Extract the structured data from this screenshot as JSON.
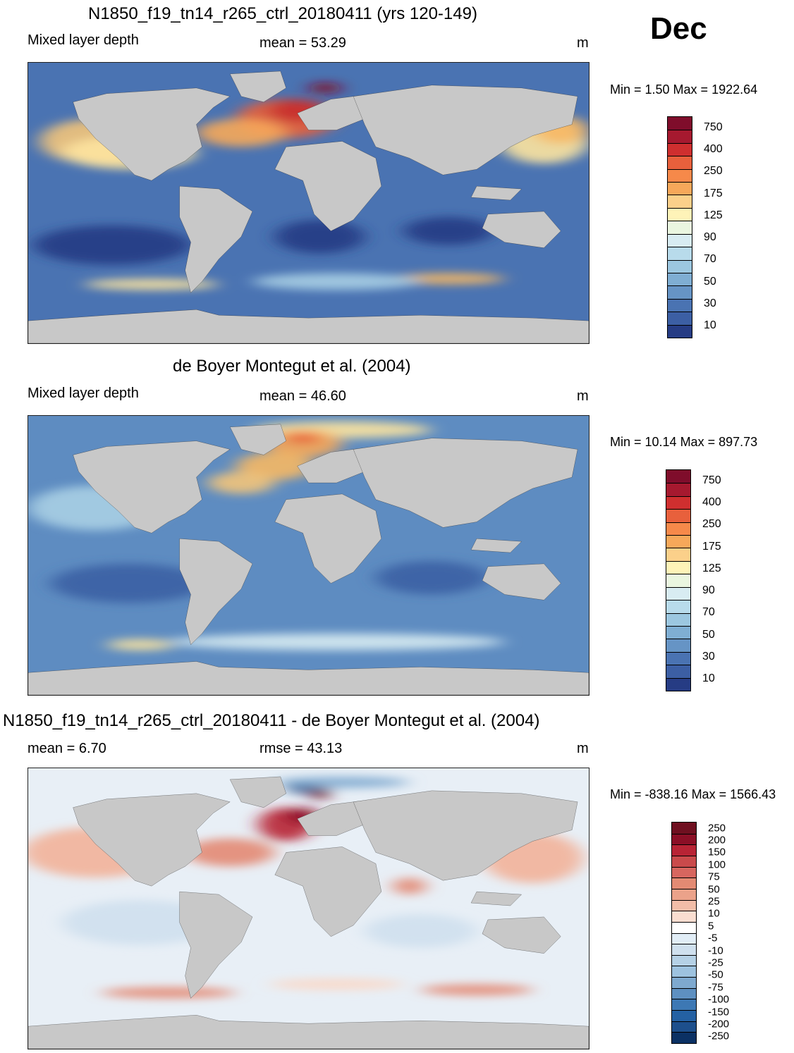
{
  "month": "Dec",
  "panels": [
    {
      "id": "model",
      "title": "N1850_f19_tn14_r265_ctrl_20180411 (yrs 120-149)",
      "left_label": "Mixed layer depth",
      "center_label": "mean =  53.29",
      "units": "m",
      "minmax": "Min =   1.50 Max = 1922.64",
      "map_bg": "#4a73b2",
      "patches": [
        {
          "c": "#f2c47a",
          "cx": 12,
          "cy": 28,
          "rx": 10,
          "ry": 8
        },
        {
          "c": "#fde4a0",
          "cx": 18,
          "cy": 32,
          "rx": 12,
          "ry": 6
        },
        {
          "c": "#e8603c",
          "cx": 46,
          "cy": 20,
          "rx": 9,
          "ry": 7
        },
        {
          "c": "#c62f2f",
          "cx": 48,
          "cy": 17,
          "rx": 5,
          "ry": 4
        },
        {
          "c": "#7f0d2b",
          "cx": 53,
          "cy": 9,
          "rx": 3,
          "ry": 2
        },
        {
          "c": "#f6a85a",
          "cx": 38,
          "cy": 25,
          "rx": 8,
          "ry": 5
        },
        {
          "c": "#fde4a0",
          "cx": 92,
          "cy": 28,
          "rx": 8,
          "ry": 8
        },
        {
          "c": "#f6b864",
          "cx": 95,
          "cy": 24,
          "rx": 5,
          "ry": 5
        },
        {
          "c": "#263c84",
          "cx": 15,
          "cy": 65,
          "rx": 14,
          "ry": 7
        },
        {
          "c": "#263c84",
          "cx": 52,
          "cy": 62,
          "rx": 8,
          "ry": 6
        },
        {
          "c": "#263c84",
          "cx": 75,
          "cy": 60,
          "rx": 8,
          "ry": 5
        },
        {
          "c": "#fde4a0",
          "cx": 22,
          "cy": 79,
          "rx": 12,
          "ry": 2
        },
        {
          "c": "#f6b864",
          "cx": 75,
          "cy": 77,
          "rx": 10,
          "ry": 2
        },
        {
          "c": "#a8cfe4",
          "cx": 55,
          "cy": 78,
          "rx": 15,
          "ry": 3
        }
      ]
    },
    {
      "id": "obs",
      "title": "de Boyer Montegut et al. (2004)",
      "left_label": "Mixed layer depth",
      "center_label": "mean =  46.60",
      "units": "m",
      "minmax": "Min =  10.14 Max = 897.73",
      "map_bg": "#5e8cc1",
      "patches": [
        {
          "c": "#fde4a0",
          "cx": 56,
          "cy": 5,
          "rx": 16,
          "ry": 3
        },
        {
          "c": "#f6a85a",
          "cx": 49,
          "cy": 10,
          "rx": 7,
          "ry": 5
        },
        {
          "c": "#e8603c",
          "cx": 49,
          "cy": 8,
          "rx": 3,
          "ry": 2
        },
        {
          "c": "#f6b864",
          "cx": 44,
          "cy": 18,
          "rx": 7,
          "ry": 5
        },
        {
          "c": "#f2c47a",
          "cx": 38,
          "cy": 24,
          "rx": 6,
          "ry": 4
        },
        {
          "c": "#a8cfe4",
          "cx": 12,
          "cy": 33,
          "rx": 12,
          "ry": 8
        },
        {
          "c": "#3c5fa4",
          "cx": 18,
          "cy": 60,
          "rx": 14,
          "ry": 7
        },
        {
          "c": "#3c5fa4",
          "cx": 72,
          "cy": 58,
          "rx": 10,
          "ry": 6
        },
        {
          "c": "#d8ecf2",
          "cx": 55,
          "cy": 81,
          "rx": 30,
          "ry": 3
        },
        {
          "c": "#fde4a0",
          "cx": 20,
          "cy": 82,
          "rx": 6,
          "ry": 2
        }
      ]
    },
    {
      "id": "diff",
      "title": "N1850_f19_tn14_r265_ctrl_20180411 - de Boyer Montegut et al. (2004)",
      "left_label": "mean =   6.70",
      "center_label": "rmse =  43.13",
      "units": "m",
      "minmax": "Min = -838.16 Max = 1566.43",
      "map_bg": "#e8eff6",
      "patches": [
        {
          "c": "#f2b39a",
          "cx": 12,
          "cy": 30,
          "rx": 13,
          "ry": 9
        },
        {
          "c": "#e38a73",
          "cx": 36,
          "cy": 30,
          "rx": 8,
          "ry": 5
        },
        {
          "c": "#b82435",
          "cx": 46,
          "cy": 20,
          "rx": 5,
          "ry": 6
        },
        {
          "c": "#8b0f26",
          "cx": 49,
          "cy": 17,
          "rx": 3,
          "ry": 3
        },
        {
          "c": "#1d4f8c",
          "cx": 49,
          "cy": 7,
          "rx": 3,
          "ry": 2
        },
        {
          "c": "#6f1020",
          "cx": 52,
          "cy": 9,
          "rx": 2,
          "ry": 2
        },
        {
          "c": "#7ea9cf",
          "cx": 56,
          "cy": 5,
          "rx": 12,
          "ry": 2
        },
        {
          "c": "#f2b39a",
          "cx": 90,
          "cy": 32,
          "rx": 9,
          "ry": 9
        },
        {
          "c": "#e38a73",
          "cx": 68,
          "cy": 42,
          "rx": 3,
          "ry": 3
        },
        {
          "c": "#cfe0ee",
          "cx": 20,
          "cy": 55,
          "rx": 14,
          "ry": 8
        },
        {
          "c": "#cfe0ee",
          "cx": 70,
          "cy": 58,
          "rx": 10,
          "ry": 6
        },
        {
          "c": "#e38a73",
          "cx": 25,
          "cy": 80,
          "rx": 12,
          "ry": 2
        },
        {
          "c": "#e38a73",
          "cx": 80,
          "cy": 79,
          "rx": 10,
          "ry": 2
        },
        {
          "c": "#f9d8c8",
          "cx": 55,
          "cy": 77,
          "rx": 12,
          "ry": 2
        }
      ]
    }
  ],
  "colorbar_mld": {
    "colors": [
      "#7f0d2b",
      "#a6192f",
      "#cf2f2f",
      "#e8603c",
      "#f6894a",
      "#f6a85a",
      "#fbd08a",
      "#fef3b8",
      "#eaf6e0",
      "#d8ecf2",
      "#b8dbeb",
      "#9cc7e0",
      "#7faed3",
      "#6694c5",
      "#4a73b2",
      "#3c5fa4",
      "#263c84"
    ],
    "labels": [
      "750",
      "400",
      "250",
      "175",
      "125",
      "90",
      "70",
      "50",
      "30",
      "10"
    ]
  },
  "colorbar_diff": {
    "colors": [
      "#6f1020",
      "#8b0f26",
      "#b82435",
      "#c94a4b",
      "#d7665f",
      "#e38a73",
      "#eba28a",
      "#f2bda8",
      "#f9ddd0",
      "#ffffff",
      "#e1edf6",
      "#cfe0ee",
      "#b5d1e6",
      "#9dc2df",
      "#7ea9cf",
      "#5e90c1",
      "#3d78b4",
      "#2461a3",
      "#1d4f8c",
      "#0b3164"
    ],
    "labels": [
      "250",
      "200",
      "150",
      "100",
      "75",
      "50",
      "25",
      "10",
      "5",
      "-5",
      "-10",
      "-25",
      "-50",
      "-75",
      "-100",
      "-150",
      "-200",
      "-250"
    ]
  }
}
